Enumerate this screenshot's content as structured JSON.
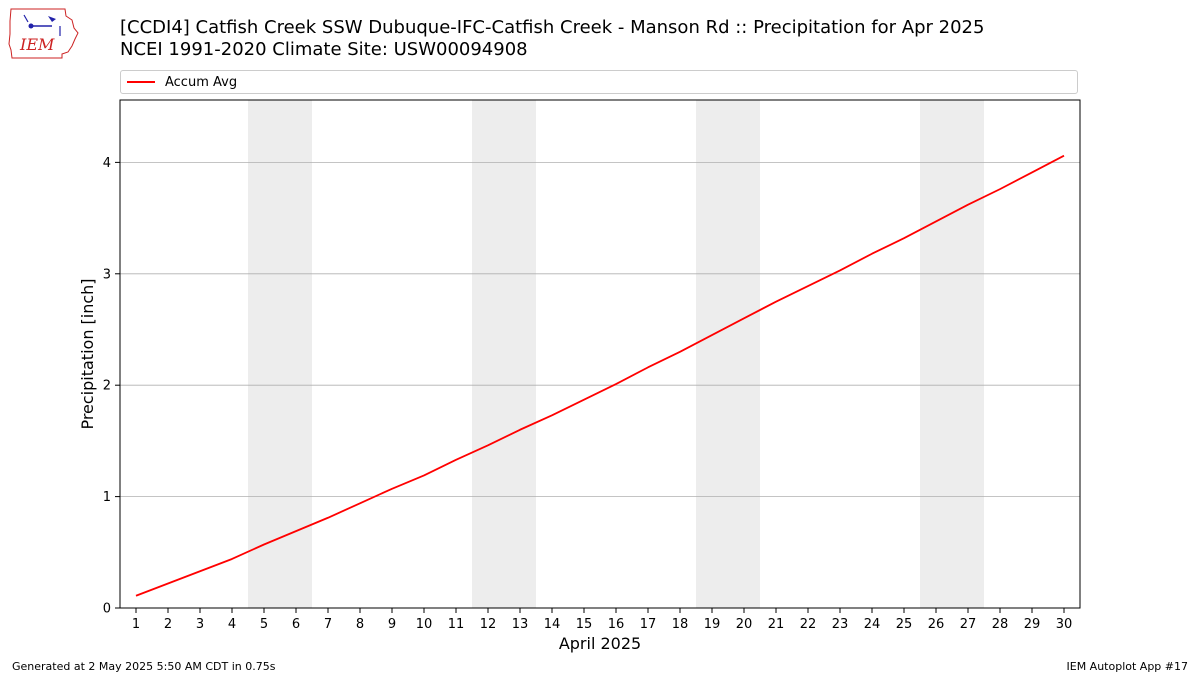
{
  "header": {
    "title_line1": "[CCDI4] Catfish Creek  SSW Dubuque-IFC-Catfish Creek - Manson Rd :: Precipitation for Apr 2025",
    "title_line2": "NCEI 1991-2020 Climate Site: USW00094908"
  },
  "logo": {
    "text": "IEM"
  },
  "footer": {
    "generated": "Generated at 2 May 2025 5:50 AM CDT in 0.75s",
    "app": "IEM Autoplot App #17"
  },
  "colors": {
    "line": "#ff0000",
    "weekend": "#ededed",
    "grid": "#b0b0b0"
  },
  "chart_data": {
    "type": "line",
    "title": "[CCDI4] Catfish Creek  SSW Dubuque-IFC-Catfish Creek - Manson Rd :: Precipitation for Apr 2025",
    "subtitle": "NCEI 1991-2020 Climate Site: USW00094908",
    "xlabel": "April 2025",
    "ylabel": "Precipitation [inch]",
    "x": [
      1,
      2,
      3,
      4,
      5,
      6,
      7,
      8,
      9,
      10,
      11,
      12,
      13,
      14,
      15,
      16,
      17,
      18,
      19,
      20,
      21,
      22,
      23,
      24,
      25,
      26,
      27,
      28,
      29,
      30
    ],
    "xticks": [
      "1",
      "2",
      "3",
      "4",
      "5",
      "6",
      "7",
      "8",
      "9",
      "10",
      "11",
      "12",
      "13",
      "14",
      "15",
      "16",
      "17",
      "18",
      "19",
      "20",
      "21",
      "22",
      "23",
      "24",
      "25",
      "26",
      "27",
      "28",
      "29",
      "30"
    ],
    "xlim": [
      0.5,
      30.5
    ],
    "ylim": [
      0,
      4.56
    ],
    "yticks": [
      0,
      1,
      2,
      3,
      4
    ],
    "grid": "y",
    "legend": "top",
    "weekend_spans": [
      [
        4.5,
        6.5
      ],
      [
        11.5,
        13.5
      ],
      [
        18.5,
        20.5
      ],
      [
        25.5,
        27.5
      ]
    ],
    "series": [
      {
        "name": "Accum Avg",
        "color": "#ff0000",
        "values": [
          0.11,
          0.22,
          0.33,
          0.44,
          0.57,
          0.69,
          0.81,
          0.94,
          1.07,
          1.19,
          1.33,
          1.46,
          1.6,
          1.73,
          1.87,
          2.01,
          2.16,
          2.3,
          2.45,
          2.6,
          2.75,
          2.89,
          3.03,
          3.18,
          3.32,
          3.47,
          3.62,
          3.76,
          3.91,
          4.06
        ]
      }
    ]
  }
}
